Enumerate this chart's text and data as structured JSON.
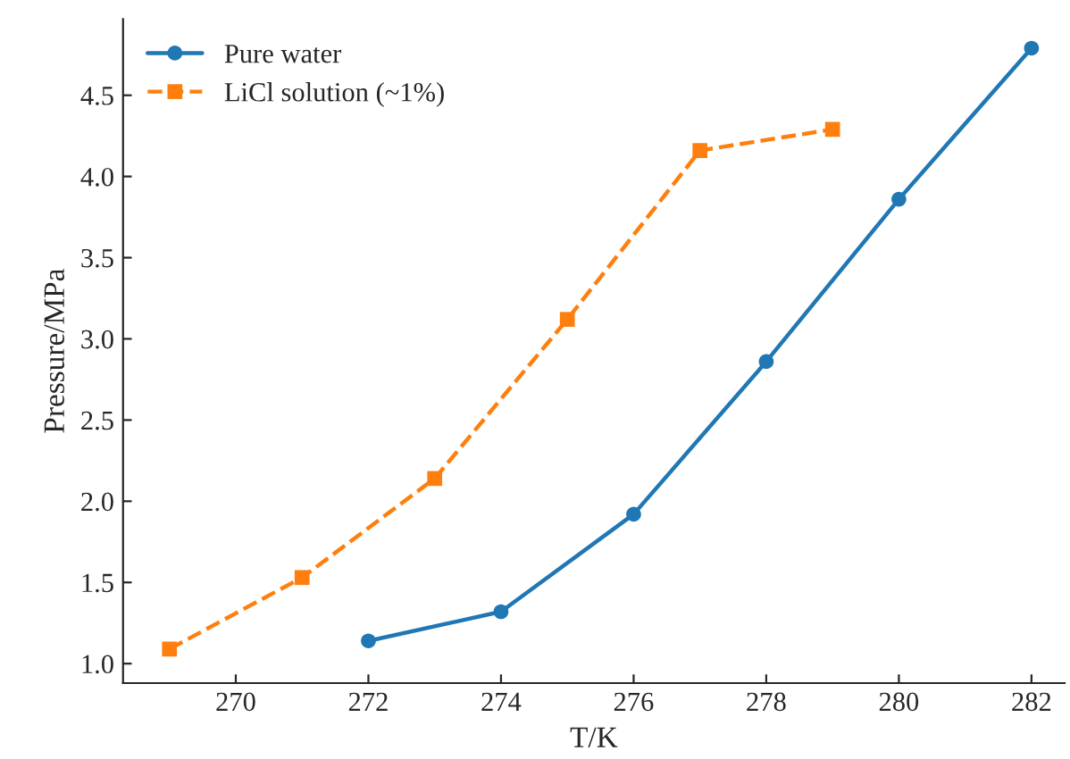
{
  "chart_data": {
    "type": "line",
    "xlabel": "T/K",
    "ylabel": "Pressure/MPa",
    "series": [
      {
        "name": "Pure water",
        "color": "#1f77b4",
        "marker": "circle",
        "line_style": "solid",
        "x": [
          272,
          274,
          276,
          278,
          280,
          282
        ],
        "values": [
          1.14,
          1.32,
          1.92,
          2.86,
          3.86,
          4.79
        ]
      },
      {
        "name": "LiCl solution (~1%)",
        "color": "#ff7f0e",
        "marker": "square",
        "line_style": "dashed",
        "x": [
          269,
          271,
          273,
          275,
          277,
          279
        ],
        "values": [
          1.09,
          1.53,
          2.14,
          3.12,
          4.16,
          4.29
        ]
      }
    ],
    "xlim": [
      268.3,
      282.5
    ],
    "xticks": [
      270,
      272,
      274,
      276,
      278,
      280,
      282
    ],
    "ylim": [
      0.88,
      4.97
    ],
    "yticks": [
      {
        "value": 1.0,
        "label": "1.0"
      },
      1.5,
      {
        "value": 2.0,
        "label": "2.0"
      },
      2.5,
      {
        "value": 3.0,
        "label": "3.0"
      },
      3.5,
      {
        "value": 4.0,
        "label": "4.0"
      },
      4.5
    ],
    "legend": "top left",
    "grid": false
  }
}
